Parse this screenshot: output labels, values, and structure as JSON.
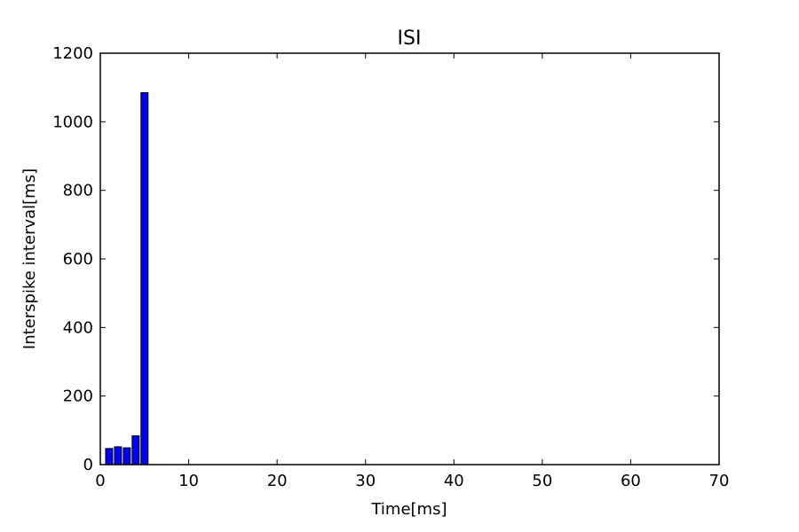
{
  "chart_data": {
    "type": "bar",
    "title": "ISI",
    "xlabel": "Time[ms]",
    "ylabel": "Interspike interval[ms]",
    "xlim": [
      0,
      70
    ],
    "ylim": [
      0,
      1200
    ],
    "xticks": [
      0,
      10,
      20,
      30,
      40,
      50,
      60,
      70
    ],
    "yticks": [
      0,
      200,
      400,
      600,
      800,
      1000,
      1200
    ],
    "bar_width": 0.8,
    "grid": false,
    "colors": {
      "bar": "#0000ff",
      "edge": "#000000"
    },
    "x": [
      1,
      2,
      3,
      4,
      5
    ],
    "values": [
      47,
      52,
      49,
      84,
      1085
    ]
  }
}
